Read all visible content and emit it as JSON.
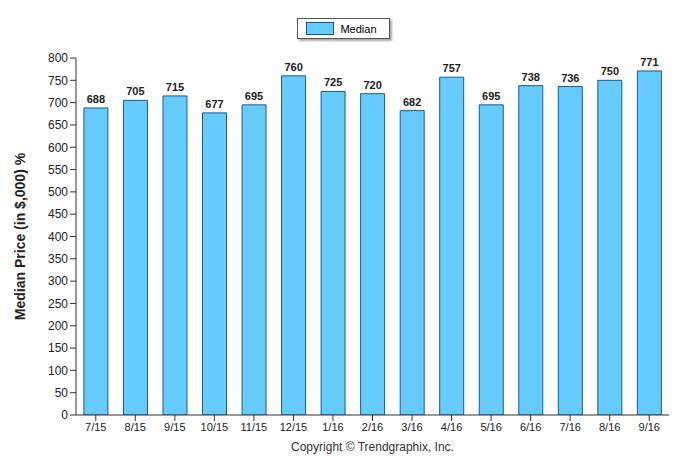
{
  "chart_data": {
    "type": "bar",
    "y_label": "Median Price (in $,000) %",
    "categories": [
      "7/15",
      "8/15",
      "9/15",
      "10/15",
      "11/15",
      "12/15",
      "1/16",
      "2/16",
      "3/16",
      "4/16",
      "5/16",
      "6/16",
      "7/16",
      "8/16",
      "9/16"
    ],
    "series": [
      {
        "name": "Median",
        "color": "#66ccff",
        "values": [
          688,
          705,
          715,
          677,
          695,
          760,
          725,
          720,
          682,
          757,
          695,
          738,
          736,
          750,
          771
        ]
      }
    ],
    "ylim": [
      0,
      800
    ],
    "yticks": [
      0,
      50,
      100,
      150,
      200,
      250,
      300,
      350,
      400,
      450,
      500,
      550,
      600,
      650,
      700,
      750,
      800
    ],
    "grid": false,
    "legend": "top",
    "data_labels": true,
    "annotations": [
      "Copyright © Trendgraphix, Inc."
    ]
  }
}
